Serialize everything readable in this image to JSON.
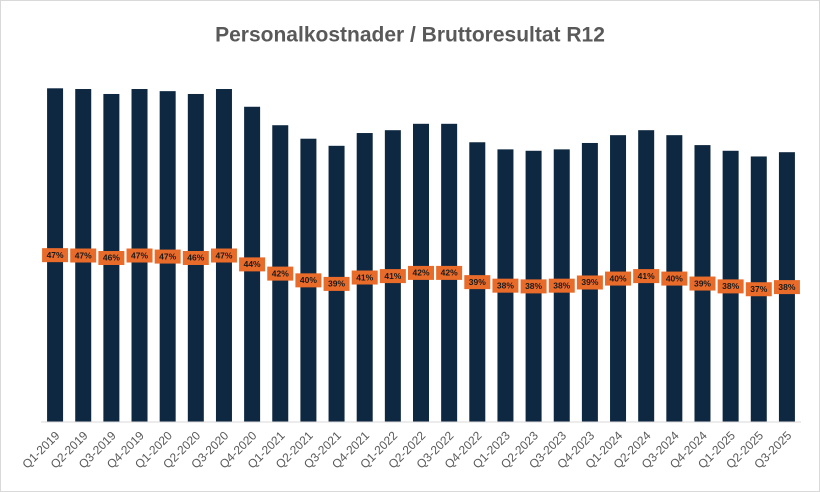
{
  "chart_data": {
    "type": "bar",
    "title": "Personalkostnader / Bruttoresultat R12",
    "categories": [
      "Q1-2019",
      "Q2-2019",
      "Q3-2019",
      "Q4-2019",
      "Q1-2020",
      "Q2-2020",
      "Q3-2020",
      "Q4-2020",
      "Q1-2021",
      "Q2-2021",
      "Q3-2021",
      "Q4-2021",
      "Q1-2022",
      "Q2-2022",
      "Q3-2022",
      "Q4-2022",
      "Q1-2023",
      "Q2-2023",
      "Q3-2023",
      "Q4-2023",
      "Q1-2024",
      "Q2-2024",
      "Q3-2024",
      "Q4-2024",
      "Q1-2025",
      "Q2-2025",
      "Q3-2025"
    ],
    "values": [
      47.0,
      46.9,
      46.2,
      46.9,
      46.6,
      46.2,
      46.9,
      44.4,
      41.8,
      39.9,
      38.9,
      40.7,
      41.1,
      42.0,
      42.0,
      39.4,
      38.4,
      38.2,
      38.4,
      39.3,
      40.4,
      41.1,
      40.4,
      39.0,
      38.2,
      37.4,
      38.0
    ],
    "value_labels": [
      "47%",
      "47%",
      "46%",
      "47%",
      "47%",
      "46%",
      "47%",
      "44%",
      "42%",
      "40%",
      "39%",
      "41%",
      "41%",
      "42%",
      "42%",
      "39%",
      "38%",
      "38%",
      "38%",
      "39%",
      "40%",
      "41%",
      "40%",
      "39%",
      "38%",
      "37%",
      "38%"
    ],
    "color": "#0e2841",
    "label_color": "#e96b2a",
    "ylim": [
      0,
      50
    ]
  }
}
